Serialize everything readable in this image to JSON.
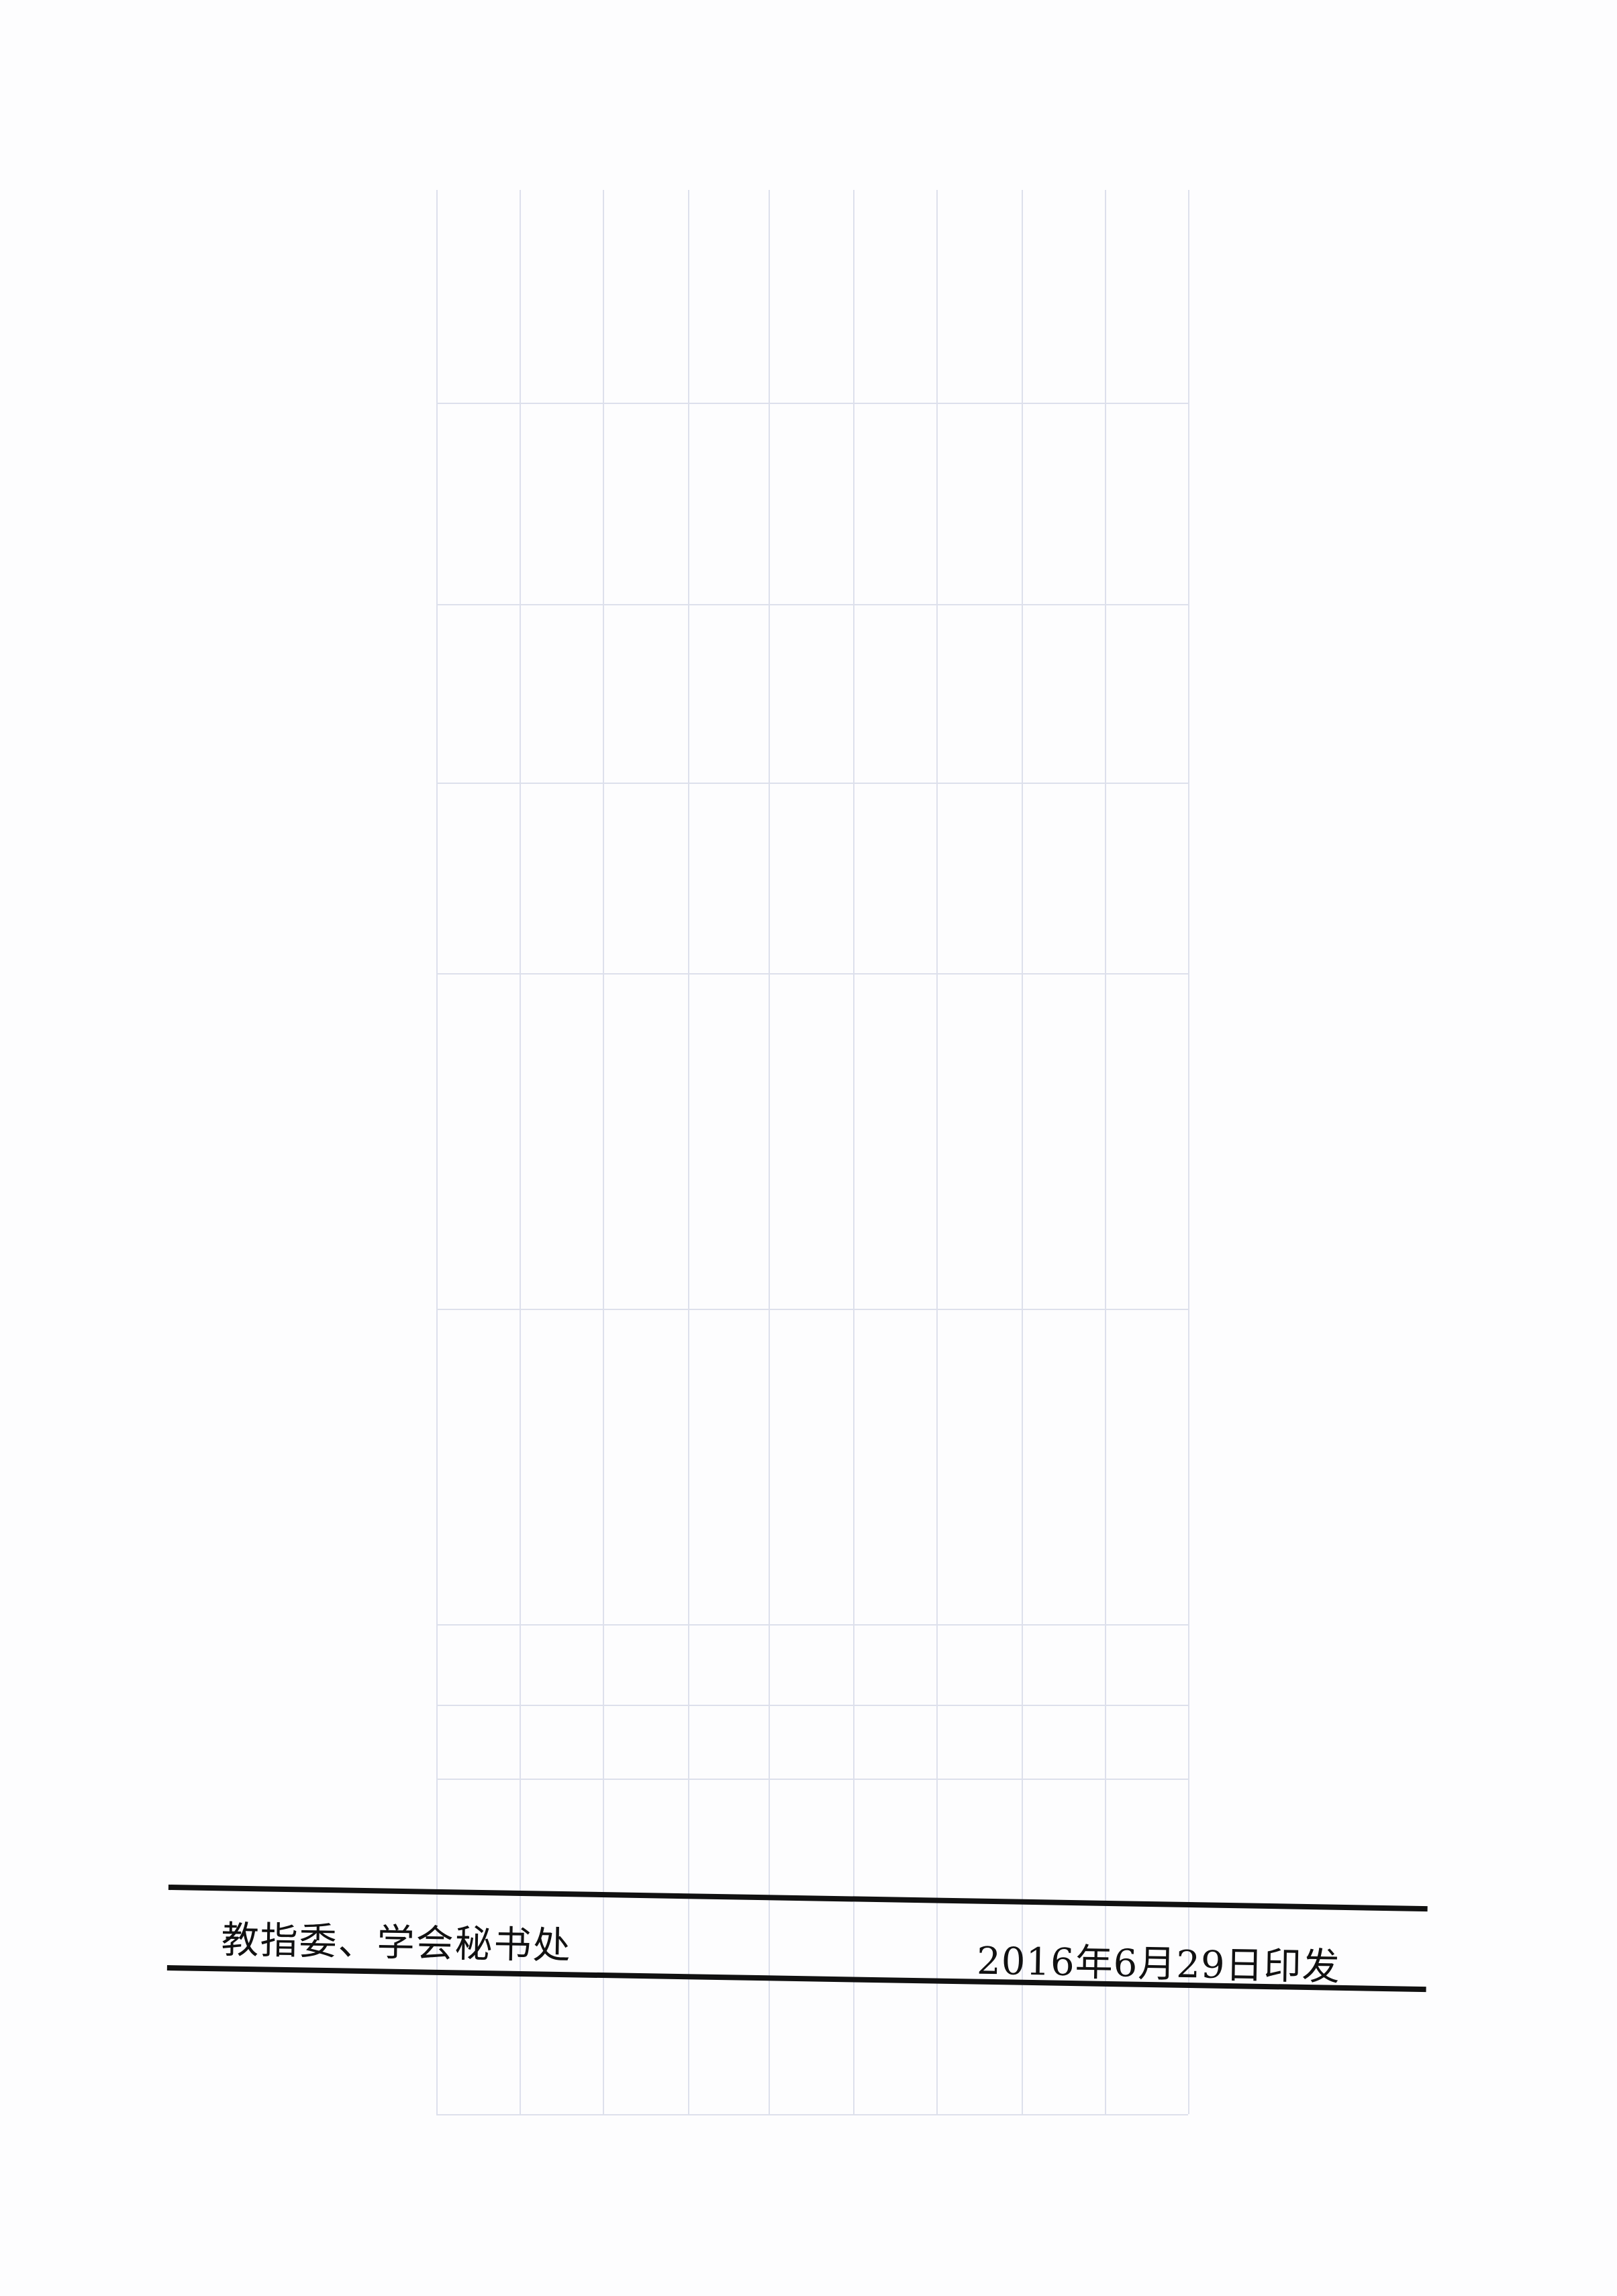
{
  "footer": {
    "issuer": "教指委、学会秘书处",
    "date": "2016年6月29日印发"
  },
  "colors": {
    "ink": "#111111",
    "bleed_through": "#dde0ec"
  }
}
